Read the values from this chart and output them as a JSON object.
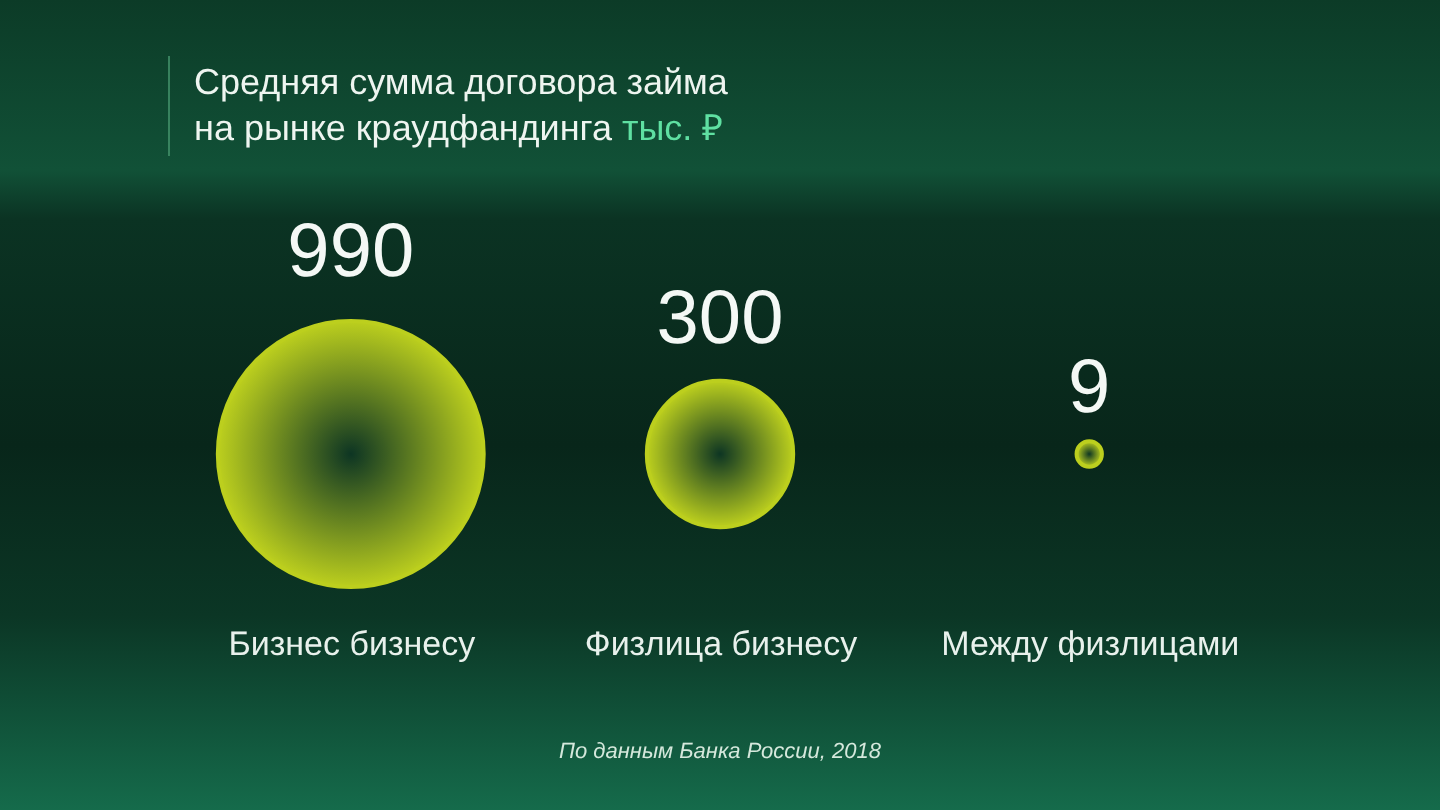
{
  "chart_data": {
    "type": "other",
    "title": "Средняя сумма договора займа на рынке краудфандинга",
    "subtitle": "тыс. ₽",
    "categories": [
      "Бизнес бизнесу",
      "Физлица бизнесу",
      "Между физлицами"
    ],
    "values": [
      990,
      300,
      9
    ],
    "data_labels": true,
    "color": "#bccf1e",
    "annotations": [
      "По данным Банка России, 2018"
    ]
  }
}
